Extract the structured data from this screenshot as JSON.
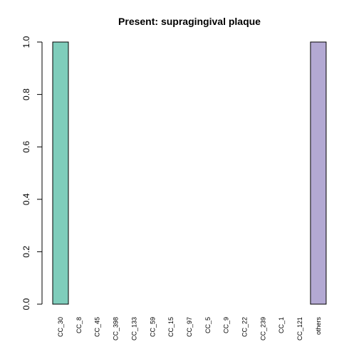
{
  "chart_data": {
    "type": "bar",
    "title": "Present:  supragingival plaque",
    "xlabel": "",
    "ylabel": "",
    "ylim": [
      0,
      1
    ],
    "yticks": [
      "0.0",
      "0.2",
      "0.4",
      "0.6",
      "0.8",
      "1.0"
    ],
    "categories": [
      "CC_30",
      "CC_8",
      "CC_45",
      "CC_398",
      "CC_133",
      "CC_59",
      "CC_15",
      "CC_97",
      "CC_5",
      "CC_9",
      "CC_22",
      "CC_239",
      "CC_1",
      "CC_121",
      "others"
    ],
    "values": [
      1.0,
      0,
      0,
      0,
      0,
      0,
      0,
      0,
      0,
      0,
      0,
      0,
      0,
      0,
      1.0
    ],
    "bar_colors": [
      "#7fcdbb",
      "#7fcdbb",
      "#7fcdbb",
      "#7fcdbb",
      "#7fcdbb",
      "#7fcdbb",
      "#7fcdbb",
      "#7fcdbb",
      "#7fcdbb",
      "#7fcdbb",
      "#7fcdbb",
      "#7fcdbb",
      "#7fcdbb",
      "#7fcdbb",
      "#b3a9d3"
    ],
    "grid": false,
    "legend": "none"
  }
}
